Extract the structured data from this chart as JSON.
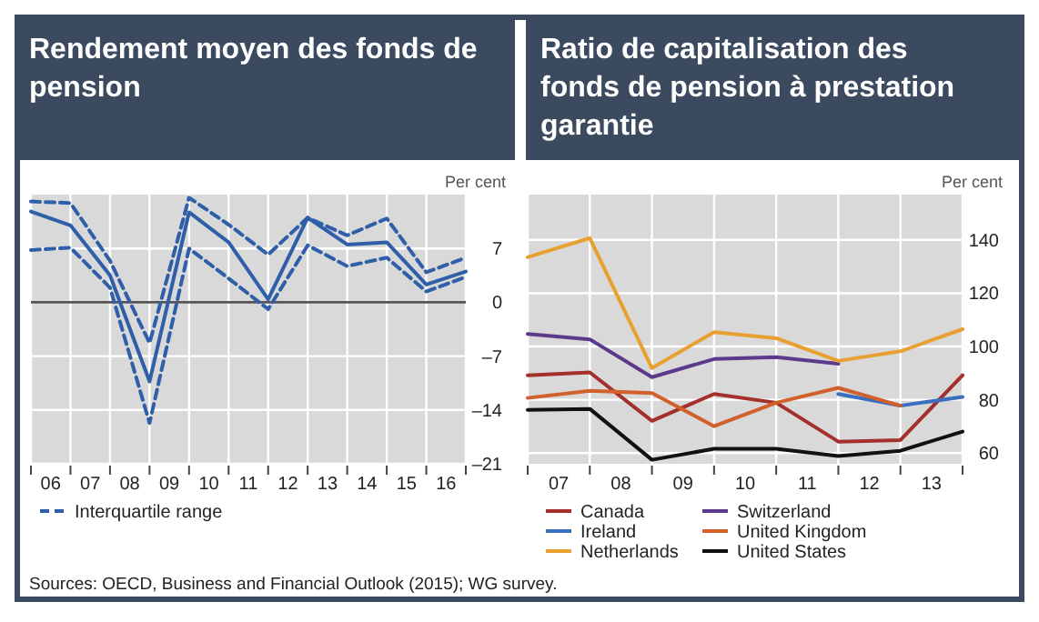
{
  "chart_data": [
    {
      "type": "line",
      "title": "Rendement moyen des fonds de pension",
      "ylabel": "Per cent",
      "x": [
        5.5,
        6.5,
        7.5,
        8.5,
        9.5,
        10.5,
        11.5,
        12.5,
        13.5,
        14.5,
        15.5,
        16.5
      ],
      "xlim": [
        5.5,
        16.5
      ],
      "xticks": [
        {
          "value": 5.5,
          "label": null
        },
        {
          "value": 6,
          "label": "06"
        },
        {
          "value": 6.5,
          "label": null
        },
        {
          "value": 7,
          "label": "07"
        },
        {
          "value": 7.5,
          "label": null
        },
        {
          "value": 8,
          "label": "08"
        },
        {
          "value": 8.5,
          "label": null
        },
        {
          "value": 9,
          "label": "09"
        },
        {
          "value": 9.5,
          "label": null
        },
        10,
        {
          "value": 10.5,
          "label": null
        },
        11,
        {
          "value": 11.5,
          "label": null
        },
        12,
        {
          "value": 12.5,
          "label": null
        },
        13,
        {
          "value": 13.5,
          "label": null
        },
        14,
        {
          "value": 14.5,
          "label": null
        },
        15,
        {
          "value": 15.5,
          "label": null
        },
        16,
        {
          "value": 16.5,
          "label": null
        }
      ],
      "ylim": [
        -21,
        14
      ],
      "yticks": [
        {
          "value": -21,
          "label": "–21"
        },
        {
          "value": -14,
          "label": "–14"
        },
        {
          "value": -7,
          "label": "–7"
        },
        0,
        7
      ],
      "grid": true,
      "legend": "bottom",
      "ref_lines": [
        {
          "axis": "y",
          "value": 0,
          "color": "#555555"
        }
      ],
      "series": [
        {
          "color": "#2e5fa8",
          "line_style": "solid",
          "values": [
            11.8,
            10.0,
            3.5,
            -10.3,
            11.7,
            7.8,
            0.4,
            11.0,
            7.5,
            7.8,
            2.3,
            4.0
          ]
        },
        {
          "name": "Interquartile range",
          "color": "#2e5fa8",
          "line_style": "dashed",
          "values": [
            13.1,
            12.9,
            5.4,
            -5.3,
            13.6,
            10.1,
            6.2,
            11.0,
            8.7,
            10.9,
            3.9,
            5.8
          ]
        },
        {
          "color": "#2e5fa8",
          "line_style": "dashed",
          "values": [
            6.8,
            7.1,
            1.9,
            -15.7,
            7.0,
            3.1,
            -0.9,
            7.4,
            4.7,
            5.8,
            1.4,
            3.3
          ]
        }
      ],
      "annotations": [
        "Sources: OECD, Business and Financial Outlook (2015); WG survey."
      ]
    },
    {
      "type": "line",
      "title": "Ratio de capitalisation des fonds de pension à prestation garantie",
      "ylabel": "Per cent",
      "x": [
        6.5,
        7.5,
        8.5,
        9.5,
        10.5,
        11.5,
        12.5,
        13.5
      ],
      "xlim": [
        6.5,
        13.5
      ],
      "xticks": [
        {
          "value": 6.5,
          "label": null
        },
        {
          "value": 7,
          "label": "07"
        },
        {
          "value": 7.5,
          "label": null
        },
        {
          "value": 8,
          "label": "08"
        },
        {
          "value": 8.5,
          "label": null
        },
        {
          "value": 9,
          "label": "09"
        },
        {
          "value": 9.5,
          "label": null
        },
        10,
        {
          "value": 10.5,
          "label": null
        },
        11,
        {
          "value": 11.5,
          "label": null
        },
        12,
        {
          "value": 12.5,
          "label": null
        },
        13,
        {
          "value": 13.5,
          "label": null
        }
      ],
      "ylim": [
        56,
        157
      ],
      "yticks": [
        60,
        80,
        100,
        120,
        140
      ],
      "grid": true,
      "legend": "bottom",
      "series": [
        {
          "name": "Canada",
          "color": "#a3302a",
          "line_style": "solid",
          "values": [
            89.2,
            90.3,
            72.1,
            82.2,
            78.9,
            64.3,
            64.9,
            89.2
          ]
        },
        {
          "name": "Switzerland",
          "color": "#5b3a8c",
          "line_style": "solid",
          "values": [
            104.7,
            102.7,
            88.5,
            95.3,
            96.0,
            93.5,
            null,
            null
          ]
        },
        {
          "name": "Ireland",
          "color": "#3a6fc0",
          "line_style": "solid",
          "values": [
            null,
            null,
            null,
            null,
            null,
            82.2,
            77.8,
            81.1
          ]
        },
        {
          "name": "United Kingdom",
          "color": "#d2602a",
          "line_style": "solid",
          "values": [
            80.7,
            83.4,
            82.5,
            70.1,
            78.9,
            84.5,
            77.8,
            null
          ]
        },
        {
          "name": "Netherlands",
          "color": "#e8a030",
          "line_style": "solid",
          "values": [
            133.5,
            140.7,
            91.9,
            105.4,
            103.1,
            94.6,
            98.2,
            106.5
          ]
        },
        {
          "name": "United States",
          "color": "#111111",
          "line_style": "solid",
          "values": [
            76.2,
            76.6,
            57.5,
            61.6,
            61.6,
            58.9,
            60.9,
            68.1
          ]
        }
      ]
    }
  ]
}
